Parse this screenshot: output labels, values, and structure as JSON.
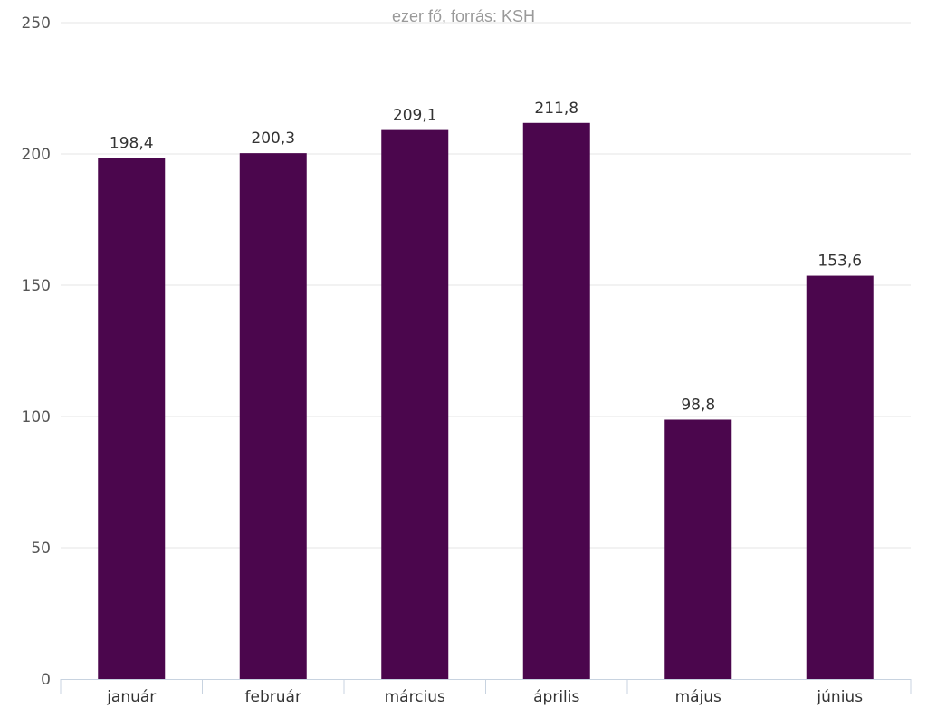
{
  "chart_data": {
    "type": "bar",
    "subtitle": "ezer fő, forrás: KSH",
    "categories": [
      "január",
      "február",
      "március",
      "április",
      "május",
      "június"
    ],
    "values": [
      198.4,
      200.3,
      209.1,
      211.8,
      98.8,
      153.6
    ],
    "value_labels": [
      "198,4",
      "200,3",
      "209,1",
      "211,8",
      "98,8",
      "153,6"
    ],
    "yticks": [
      0,
      50,
      100,
      150,
      200,
      250
    ],
    "ylim": [
      0,
      250
    ],
    "xlabel": "",
    "ylabel": "",
    "grid": true,
    "legend": "none",
    "bar_color": "#4b064d"
  }
}
